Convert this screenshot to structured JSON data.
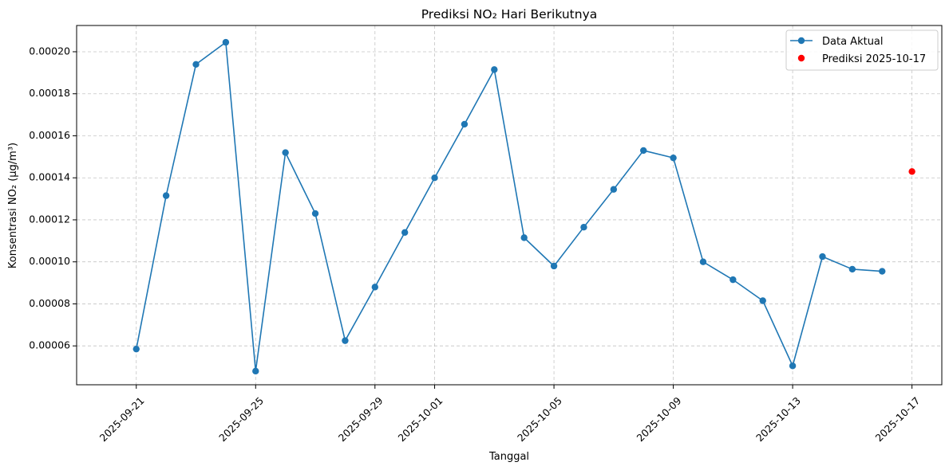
{
  "chart_data": {
    "type": "line",
    "title": "Prediksi NO₂ Hari Berikutnya",
    "xlabel": "Tanggal",
    "ylabel": "Konsentrasi NO₂ (µg/m³)",
    "xlim": [
      "2025-09-19",
      "2025-10-18"
    ],
    "ylim": [
      4.15e-05,
      0.0002125
    ],
    "x_ticks": [
      "2025-09-21",
      "2025-09-25",
      "2025-09-29",
      "2025-10-01",
      "2025-10-05",
      "2025-10-09",
      "2025-10-13",
      "2025-10-17"
    ],
    "y_ticks": [
      "0.00006",
      "0.00008",
      "0.00010",
      "0.00012",
      "0.00014",
      "0.00016",
      "0.00018",
      "0.00020"
    ],
    "grid": true,
    "legend_position": "top-right",
    "series": [
      {
        "name": "Data Aktual",
        "color": "#1f77b4",
        "marker": "circle",
        "x": [
          "2025-09-21",
          "2025-09-22",
          "2025-09-23",
          "2025-09-24",
          "2025-09-25",
          "2025-09-26",
          "2025-09-27",
          "2025-09-28",
          "2025-09-29",
          "2025-09-30",
          "2025-10-01",
          "2025-10-02",
          "2025-10-03",
          "2025-10-04",
          "2025-10-05",
          "2025-10-06",
          "2025-10-07",
          "2025-10-08",
          "2025-10-09",
          "2025-10-10",
          "2025-10-11",
          "2025-10-12",
          "2025-10-13",
          "2025-10-14",
          "2025-10-15",
          "2025-10-16"
        ],
        "y": [
          5.85e-05,
          0.0001315,
          0.000194,
          0.0002045,
          4.8e-05,
          0.000152,
          0.000123,
          6.25e-05,
          8.8e-05,
          0.000114,
          0.00014,
          0.0001655,
          0.0001915,
          0.0001115,
          9.8e-05,
          0.0001165,
          0.0001345,
          0.000153,
          0.0001495,
          0.0001,
          9.15e-05,
          8.15e-05,
          5.05e-05,
          0.0001025,
          9.65e-05,
          9.55e-05
        ]
      },
      {
        "name": "Prediksi 2025-10-17",
        "color": "#ff0000",
        "marker": "circle",
        "x": [
          "2025-10-17"
        ],
        "y": [
          0.000143
        ]
      }
    ]
  }
}
